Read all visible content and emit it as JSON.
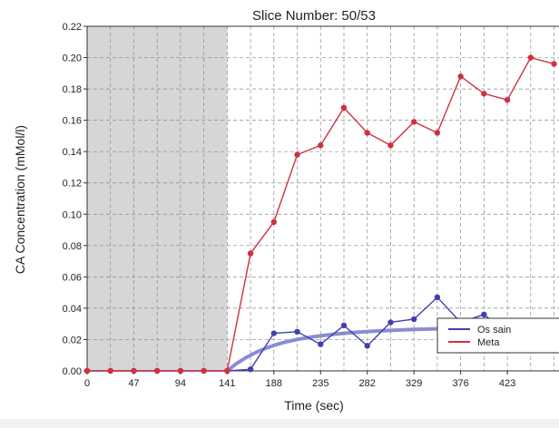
{
  "chart_data": {
    "type": "line",
    "title": "Slice Number: 50/53",
    "xlabel": "Time (sec)",
    "ylabel": "CA Concentration (mMol/l)",
    "xlim": [
      0,
      475
    ],
    "ylim": [
      0,
      0.22
    ],
    "x_ticks": [
      0,
      47,
      94,
      141,
      188,
      235,
      282,
      329,
      376,
      423
    ],
    "y_ticks": [
      "0.00",
      "0.02",
      "0.04",
      "0.06",
      "0.08",
      "0.10",
      "0.12",
      "0.14",
      "0.16",
      "0.18",
      "0.20",
      "0.22"
    ],
    "shaded_region": [
      0,
      141
    ],
    "grid": true,
    "legend_position": "bottom-right",
    "series": [
      {
        "name": "Os sain",
        "color": "#4040b0",
        "x": [
          0,
          23.5,
          47,
          70.5,
          94,
          117.5,
          141,
          164.5,
          188,
          211.5,
          235,
          258.5,
          282,
          305.5,
          329,
          352.5,
          376,
          399.5,
          423,
          446.5,
          470
        ],
        "values": [
          0,
          0,
          0,
          0,
          0,
          0,
          0,
          0.001,
          0.024,
          0.025,
          0.017,
          0.029,
          0.016,
          0.031,
          0.033,
          0.047,
          0.031,
          0.036,
          0.024,
          0.029,
          0.027
        ]
      },
      {
        "name": "Meta",
        "color": "#d03040",
        "x": [
          0,
          23.5,
          47,
          70.5,
          94,
          117.5,
          141,
          164.5,
          188,
          211.5,
          235,
          258.5,
          282,
          305.5,
          329,
          352.5,
          376,
          399.5,
          423,
          446.5,
          470
        ],
        "values": [
          0,
          0,
          0,
          0,
          0,
          0,
          0,
          0.075,
          0.095,
          0.138,
          0.144,
          0.168,
          0.152,
          0.144,
          0.159,
          0.152,
          0.188,
          0.177,
          0.173,
          0.2,
          0.196
        ]
      }
    ],
    "fit_curve": {
      "color": "#8080d0",
      "x": [
        141,
        150,
        160,
        170,
        180,
        190,
        200,
        215,
        230,
        250,
        270,
        290,
        310,
        330,
        360,
        390,
        420,
        450,
        475
      ],
      "values": [
        0,
        0.0045,
        0.0085,
        0.0118,
        0.0145,
        0.0167,
        0.0185,
        0.0205,
        0.022,
        0.0235,
        0.0246,
        0.0254,
        0.026,
        0.0265,
        0.027,
        0.0273,
        0.0275,
        0.0277,
        0.0278
      ]
    }
  }
}
